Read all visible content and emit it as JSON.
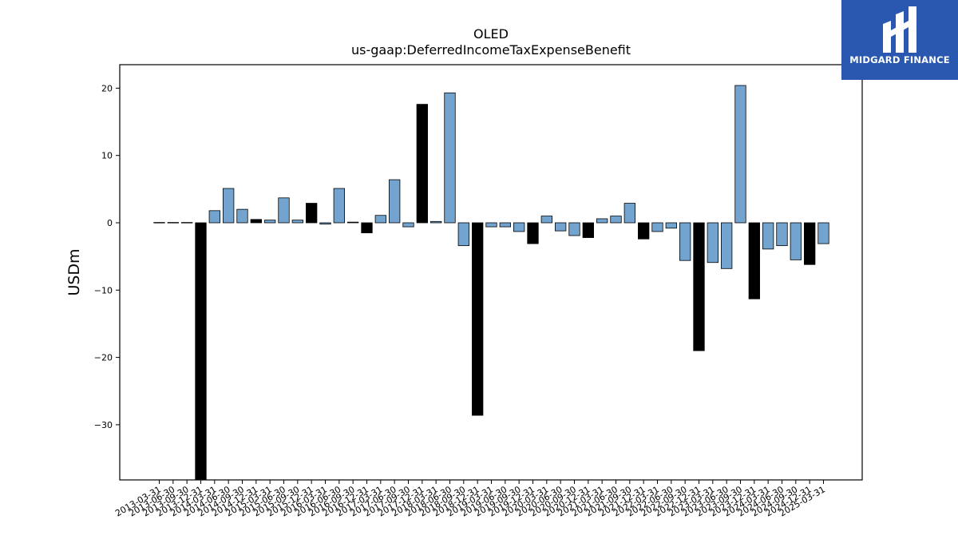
{
  "logo": {
    "text": "MIDGARD FINANCE"
  },
  "chart_data": {
    "type": "bar",
    "title": "OLED",
    "subtitle": "us-gaap:DeferredIncomeTaxExpenseBenefit",
    "xlabel": "",
    "ylabel": "USDm",
    "ylim": [
      -38.2,
      23.5
    ],
    "yticks": [
      20,
      10,
      0,
      -10,
      -20,
      -30
    ],
    "ytick_labels": [
      "20",
      "10",
      "0",
      "−10",
      "−20",
      "−30"
    ],
    "grid": false,
    "colors": {
      "quarterly": "#73a4d0",
      "annual": "#000000",
      "edge": "#000000"
    },
    "categories": [
      "2013-03-31",
      "2013-06-30",
      "2013-09-30",
      "2013-12-31",
      "2014-03-31",
      "2014-06-30",
      "2014-09-30",
      "2014-12-31",
      "2015-03-31",
      "2015-06-30",
      "2015-09-30",
      "2015-12-31",
      "2016-03-31",
      "2016-06-30",
      "2016-09-30",
      "2016-12-31",
      "2017-03-31",
      "2017-06-30",
      "2017-09-30",
      "2017-12-31",
      "2018-03-31",
      "2018-06-30",
      "2018-09-30",
      "2018-12-31",
      "2019-03-31",
      "2019-06-30",
      "2019-09-30",
      "2019-12-31",
      "2020-03-31",
      "2020-06-30",
      "2020-09-30",
      "2020-12-31",
      "2021-03-31",
      "2021-06-30",
      "2021-09-30",
      "2021-12-31",
      "2022-03-31",
      "2022-06-30",
      "2022-09-30",
      "2022-12-31",
      "2023-03-31",
      "2023-06-30",
      "2023-09-30",
      "2023-12-31",
      "2024-03-31",
      "2024-06-30",
      "2024-09-30",
      "2024-12-31",
      "2025-03-31"
    ],
    "values": [
      0.05,
      0.05,
      0.05,
      -38.2,
      1.8,
      5.1,
      2.0,
      0.5,
      0.4,
      3.7,
      0.4,
      2.9,
      -0.2,
      5.1,
      0.1,
      -1.5,
      1.1,
      6.4,
      -0.6,
      17.6,
      0.2,
      19.3,
      -3.4,
      -28.6,
      -0.6,
      -0.6,
      -1.3,
      -3.1,
      1.0,
      -1.2,
      -1.9,
      -2.2,
      0.6,
      1.0,
      2.9,
      -2.4,
      -1.3,
      -0.8,
      -5.6,
      -19.0,
      -5.9,
      -6.8,
      20.4,
      -11.3,
      -3.9,
      -3.4,
      -5.5,
      -6.2,
      -3.1
    ],
    "annual": [
      false,
      false,
      false,
      true,
      false,
      false,
      false,
      true,
      false,
      false,
      false,
      true,
      false,
      false,
      false,
      true,
      false,
      false,
      false,
      true,
      false,
      false,
      false,
      true,
      false,
      false,
      false,
      true,
      false,
      false,
      false,
      true,
      false,
      false,
      false,
      true,
      false,
      false,
      false,
      true,
      false,
      false,
      false,
      true,
      false,
      false,
      false,
      true,
      false
    ]
  }
}
